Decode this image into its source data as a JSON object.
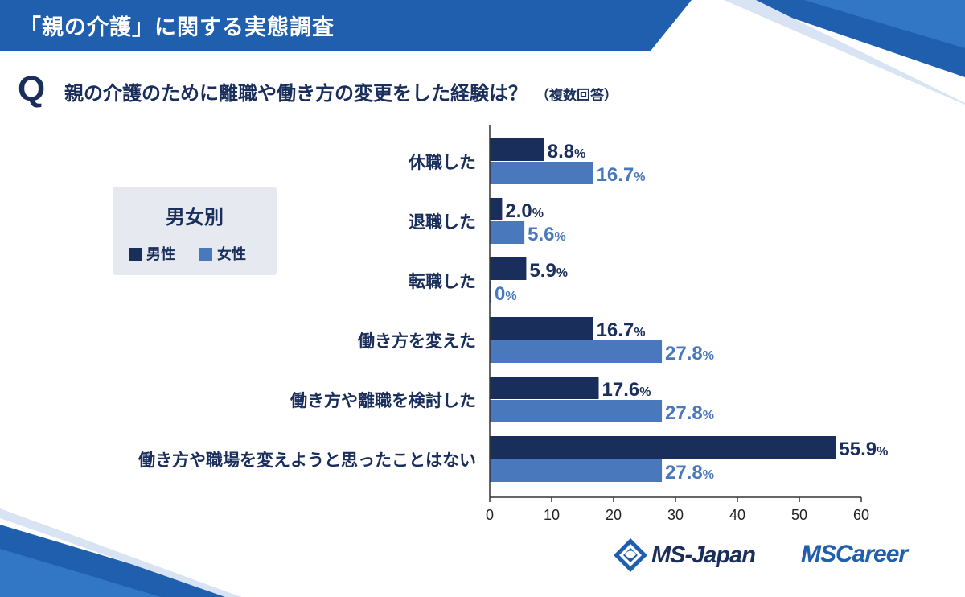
{
  "header": {
    "title": "「親の介護」に関する実態調査"
  },
  "question": {
    "mark": "Q",
    "text": "親の介護のために離職や働き方の変更をした経験は？",
    "note": "（複数回答）"
  },
  "legend": {
    "title": "男女別",
    "male_label": "男性",
    "female_label": "女性"
  },
  "colors": {
    "male": "#1a2e5c",
    "female": "#4a78bd",
    "banner": "#1f5fad",
    "legend_bg": "#e6e9f0"
  },
  "chart_data": {
    "type": "bar",
    "orientation": "horizontal",
    "categories": [
      "休職した",
      "退職した",
      "転職した",
      "働き方を変えた",
      "働き方や離職を検討した",
      "働き方や職場を変えようと思ったことはない"
    ],
    "series": [
      {
        "name": "男性",
        "values": [
          8.8,
          2.0,
          5.9,
          16.7,
          17.6,
          55.9
        ],
        "labels": [
          "8.8",
          "2.0",
          "5.9",
          "16.7",
          "17.6",
          "55.9"
        ]
      },
      {
        "name": "女性",
        "values": [
          16.7,
          5.6,
          0,
          27.8,
          27.8,
          27.8
        ],
        "labels": [
          "16.7",
          "5.6",
          "0",
          "27.8",
          "27.8",
          "27.8"
        ]
      }
    ],
    "unit": "%",
    "xlim": [
      0,
      60
    ],
    "xticks": [
      0,
      10,
      20,
      30,
      40,
      50,
      60
    ],
    "grid": false,
    "legend_position": "left"
  },
  "logos": {
    "ms_japan": "MS-Japan",
    "ms_career": "MSCareer"
  }
}
